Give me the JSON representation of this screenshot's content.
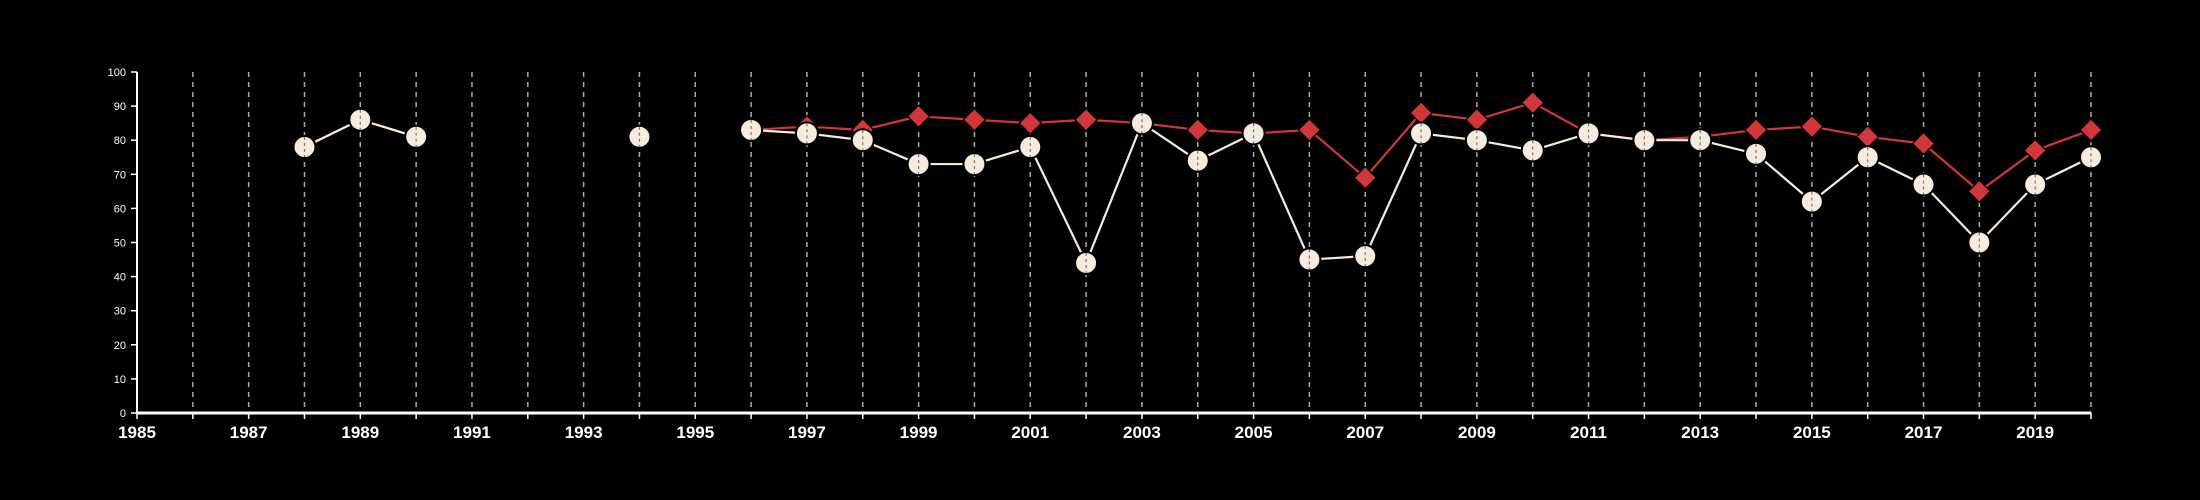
{
  "chart_data": {
    "type": "line",
    "title": "",
    "xlabel": "",
    "ylabel": "",
    "xlim": [
      1985,
      2020
    ],
    "ylim": [
      0,
      100
    ],
    "x_tick_labels": [
      "1985",
      "1987",
      "1989",
      "1991",
      "1993",
      "1995",
      "1997",
      "1999",
      "2001",
      "2003",
      "2005",
      "2007",
      "2009",
      "2011",
      "2013",
      "2015",
      "2017",
      "2019"
    ],
    "y_tick_labels": [
      "0",
      "10",
      "20",
      "30",
      "40",
      "50",
      "60",
      "70",
      "80",
      "90",
      "100"
    ],
    "vertical_grid": "dashed, every year from 1986 to 2020",
    "colors": {
      "background": "#000000",
      "axis": "#ffffff",
      "grid": "#aaaaaa",
      "red_series": "#d0363a",
      "cream_series": "#f5ecde"
    },
    "series": [
      {
        "marker": "diamond",
        "color": "#d0363a",
        "segments": [
          [
            [
              1988,
              78
            ],
            [
              1989,
              86
            ],
            [
              1990,
              81
            ]
          ],
          [
            [
              1994,
              81
            ]
          ],
          [
            [
              1996,
              83
            ],
            [
              1997,
              84
            ],
            [
              1998,
              83
            ],
            [
              1999,
              87
            ],
            [
              2000,
              86
            ],
            [
              2001,
              85
            ],
            [
              2002,
              86
            ],
            [
              2003,
              85
            ],
            [
              2004,
              83
            ],
            [
              2005,
              82
            ],
            [
              2006,
              83
            ],
            [
              2007,
              69
            ],
            [
              2008,
              88
            ],
            [
              2009,
              86
            ],
            [
              2010,
              91
            ],
            [
              2011,
              82
            ],
            [
              2012,
              80
            ],
            [
              2013,
              81
            ],
            [
              2014,
              83
            ],
            [
              2015,
              84
            ],
            [
              2016,
              81
            ],
            [
              2017,
              79
            ],
            [
              2018,
              65
            ],
            [
              2019,
              77
            ],
            [
              2020,
              83
            ]
          ]
        ]
      },
      {
        "marker": "circle",
        "color": "#f5ecde",
        "segments": [
          [
            [
              1988,
              78
            ],
            [
              1989,
              86
            ],
            [
              1990,
              81
            ]
          ],
          [
            [
              1994,
              81
            ]
          ],
          [
            [
              1996,
              83
            ],
            [
              1997,
              82
            ],
            [
              1998,
              80
            ],
            [
              1999,
              73
            ],
            [
              2000,
              73
            ],
            [
              2001,
              78
            ],
            [
              2002,
              44
            ],
            [
              2003,
              85
            ],
            [
              2004,
              74
            ],
            [
              2005,
              82
            ],
            [
              2006,
              45
            ],
            [
              2007,
              46
            ],
            [
              2008,
              82
            ],
            [
              2009,
              80
            ],
            [
              2010,
              77
            ],
            [
              2011,
              82
            ],
            [
              2012,
              80
            ],
            [
              2013,
              80
            ],
            [
              2014,
              76
            ],
            [
              2015,
              62
            ],
            [
              2016,
              75
            ],
            [
              2017,
              67
            ],
            [
              2018,
              50
            ],
            [
              2019,
              67
            ],
            [
              2020,
              75
            ]
          ]
        ]
      }
    ]
  }
}
